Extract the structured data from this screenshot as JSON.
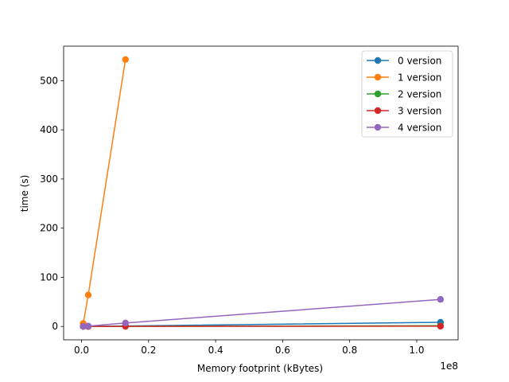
{
  "chart_data": {
    "type": "line",
    "title": "",
    "xlabel": "Memory footprint (kBytes)",
    "ylabel": "time (s)",
    "x_offset_label": "1e8",
    "xlim": [
      -5350000,
      112350000
    ],
    "ylim": [
      -27.2,
      570.2
    ],
    "x_ticks": [
      0,
      20000000,
      40000000,
      60000000,
      80000000,
      100000000
    ],
    "x_tick_labels": [
      "0.0",
      "0.2",
      "0.4",
      "0.6",
      "0.8",
      "1.0"
    ],
    "y_ticks": [
      0,
      100,
      200,
      300,
      400,
      500
    ],
    "y_tick_labels": [
      "0",
      "100",
      "200",
      "300",
      "400",
      "500"
    ],
    "grid": false,
    "legend_position": "top-right",
    "colors": {
      "series": [
        "#1f77b4",
        "#ff7f0e",
        "#2ca02c",
        "#d62728",
        "#9467bd"
      ],
      "axes": "#000000",
      "legend_frame": "#cccccc"
    },
    "series": [
      {
        "name": "0 version",
        "x": [
          500000,
          2000000,
          13100000,
          107100000
        ],
        "y": [
          0.1,
          0.3,
          1.0,
          8.5
        ]
      },
      {
        "name": "1 version",
        "x": [
          500000,
          2000000,
          13100000
        ],
        "y": [
          6,
          64,
          543
        ]
      },
      {
        "name": "2 version",
        "x": [
          500000,
          2000000,
          13100000,
          107100000
        ],
        "y": [
          0.0,
          0.1,
          0.3,
          1.5
        ]
      },
      {
        "name": "3 version",
        "x": [
          500000,
          2000000,
          13100000,
          107100000
        ],
        "y": [
          0.0,
          0.1,
          0.2,
          0.5
        ]
      },
      {
        "name": "4 version",
        "x": [
          500000,
          2000000,
          13100000,
          107100000
        ],
        "y": [
          0.1,
          0.8,
          7.0,
          55
        ]
      }
    ]
  }
}
